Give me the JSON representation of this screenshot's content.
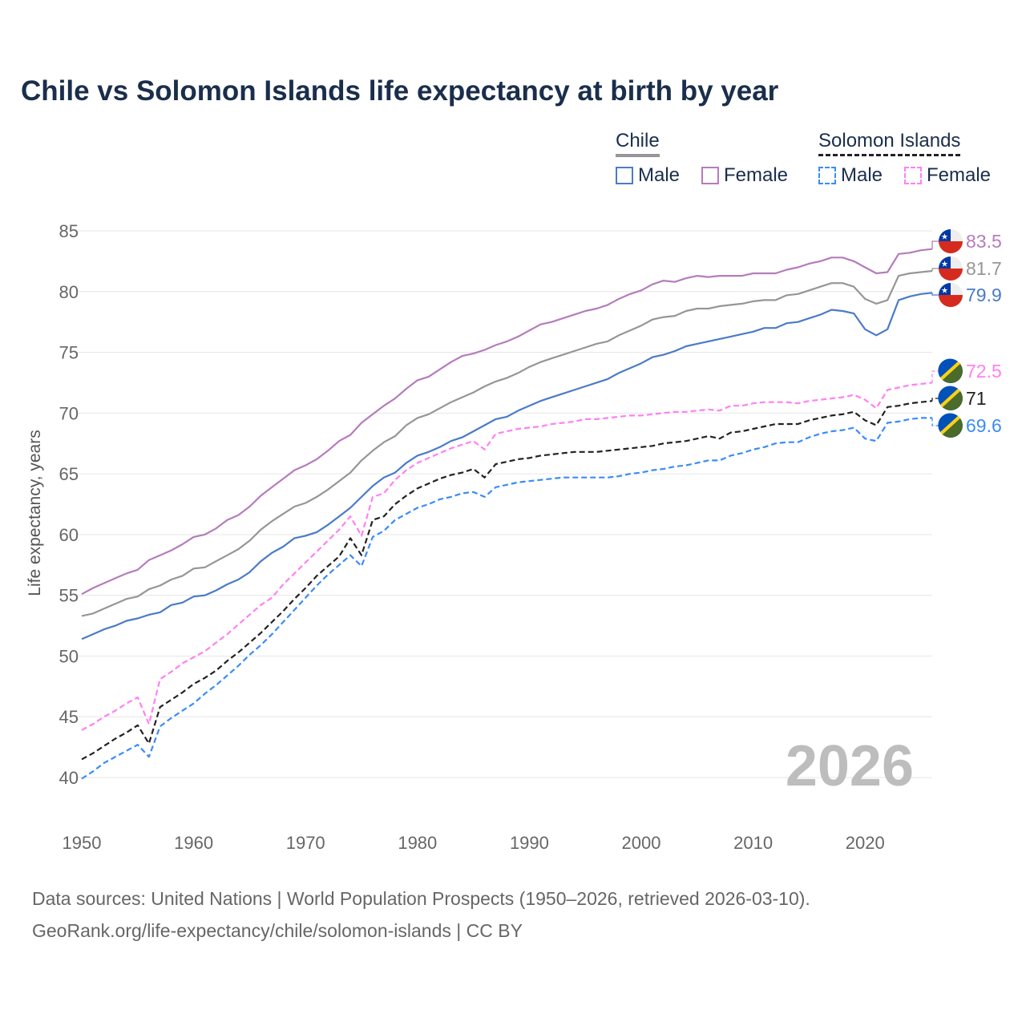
{
  "title": "Chile vs Solomon Islands life expectancy at birth by year",
  "legend": {
    "groups": [
      {
        "name": "Chile",
        "items": [
          "Male",
          "Female"
        ]
      },
      {
        "name": "Solomon Islands",
        "items": [
          "Male",
          "Female"
        ]
      }
    ]
  },
  "year_display": "2026",
  "sources": {
    "line1": "Data sources: United Nations | World Population Prospects (1950–2026, retrieved 2026-03-10).",
    "line2": "GeoRank.org/life-expectancy/chile/solomon-islands | CC BY"
  },
  "chart_data": {
    "type": "line",
    "title": "Chile vs Solomon Islands life expectancy at birth by year",
    "xlabel": "",
    "ylabel": "Life expectancy, years",
    "xlim": [
      1950,
      2026
    ],
    "ylim": [
      40,
      85
    ],
    "xticks": [
      "1950",
      "1960",
      "1970",
      "1980",
      "1990",
      "2000",
      "2010",
      "2020"
    ],
    "yticks": [
      "40",
      "45",
      "50",
      "55",
      "60",
      "65",
      "70",
      "75",
      "80",
      "85"
    ],
    "grid": true,
    "legend_position": "top-right",
    "x_start": 1950,
    "series": [
      {
        "name": "Chile Female",
        "color": "#b57cbc",
        "dash": false,
        "end_label": "83.5",
        "flag": "chile",
        "values": [
          55.1,
          55.6,
          56.0,
          56.4,
          56.8,
          57.1,
          57.9,
          58.3,
          58.7,
          59.2,
          59.8,
          60.0,
          60.5,
          61.2,
          61.6,
          62.3,
          63.2,
          63.9,
          64.6,
          65.3,
          65.7,
          66.2,
          66.9,
          67.7,
          68.2,
          69.2,
          69.9,
          70.6,
          71.2,
          72.0,
          72.7,
          73.0,
          73.6,
          74.2,
          74.7,
          74.9,
          75.2,
          75.6,
          75.9,
          76.3,
          76.8,
          77.3,
          77.5,
          77.8,
          78.1,
          78.4,
          78.6,
          78.9,
          79.4,
          79.8,
          80.1,
          80.6,
          80.9,
          80.8,
          81.1,
          81.3,
          81.2,
          81.3,
          81.3,
          81.3,
          81.5,
          81.5,
          81.5,
          81.8,
          82.0,
          82.3,
          82.5,
          82.8,
          82.8,
          82.5,
          82.0,
          81.5,
          81.6,
          83.1,
          83.2,
          83.4,
          83.5
        ]
      },
      {
        "name": "Chile",
        "color": "#969696",
        "dash": false,
        "end_label": "81.7",
        "flag": "chile",
        "values": [
          53.3,
          53.5,
          53.9,
          54.3,
          54.7,
          54.9,
          55.5,
          55.8,
          56.3,
          56.6,
          57.2,
          57.3,
          57.8,
          58.3,
          58.8,
          59.5,
          60.4,
          61.1,
          61.7,
          62.3,
          62.6,
          63.1,
          63.7,
          64.4,
          65.1,
          66.1,
          66.9,
          67.6,
          68.1,
          69.0,
          69.6,
          69.9,
          70.4,
          70.9,
          71.3,
          71.7,
          72.2,
          72.6,
          72.9,
          73.3,
          73.8,
          74.2,
          74.5,
          74.8,
          75.1,
          75.4,
          75.7,
          75.9,
          76.4,
          76.8,
          77.2,
          77.7,
          77.9,
          78.0,
          78.4,
          78.6,
          78.6,
          78.8,
          78.9,
          79.0,
          79.2,
          79.3,
          79.3,
          79.7,
          79.8,
          80.1,
          80.4,
          80.7,
          80.7,
          80.4,
          79.4,
          79.0,
          79.3,
          81.3,
          81.5,
          81.6,
          81.7
        ]
      },
      {
        "name": "Chile Male",
        "color": "#4a7bc8",
        "dash": false,
        "end_label": "79.9",
        "flag": "chile",
        "values": [
          51.4,
          51.8,
          52.2,
          52.5,
          52.9,
          53.1,
          53.4,
          53.6,
          54.2,
          54.4,
          54.9,
          55.0,
          55.4,
          55.9,
          56.3,
          56.9,
          57.8,
          58.5,
          59.0,
          59.7,
          59.9,
          60.2,
          60.8,
          61.5,
          62.2,
          63.1,
          64.0,
          64.7,
          65.1,
          65.9,
          66.5,
          66.8,
          67.2,
          67.7,
          68.0,
          68.5,
          69.0,
          69.5,
          69.7,
          70.2,
          70.6,
          71.0,
          71.3,
          71.6,
          71.9,
          72.2,
          72.5,
          72.8,
          73.3,
          73.7,
          74.1,
          74.6,
          74.8,
          75.1,
          75.5,
          75.7,
          75.9,
          76.1,
          76.3,
          76.5,
          76.7,
          77.0,
          77.0,
          77.4,
          77.5,
          77.8,
          78.1,
          78.5,
          78.4,
          78.2,
          76.9,
          76.4,
          76.9,
          79.3,
          79.6,
          79.8,
          79.9
        ]
      },
      {
        "name": "Solomon Islands Female",
        "color": "#ff80f2",
        "dash": true,
        "end_label": "72.5",
        "flag": "solomon",
        "values": [
          43.9,
          44.4,
          45.0,
          45.5,
          46.1,
          46.6,
          44.4,
          48.1,
          48.7,
          49.4,
          49.9,
          50.4,
          51.1,
          51.8,
          52.6,
          53.4,
          54.2,
          54.8,
          55.9,
          56.8,
          57.7,
          58.6,
          59.5,
          60.4,
          61.5,
          59.9,
          63.1,
          63.4,
          64.5,
          65.3,
          65.9,
          66.3,
          66.7,
          67.1,
          67.4,
          67.7,
          67.0,
          68.3,
          68.5,
          68.7,
          68.8,
          68.9,
          69.1,
          69.2,
          69.3,
          69.5,
          69.5,
          69.6,
          69.7,
          69.8,
          69.8,
          69.9,
          70.0,
          70.1,
          70.1,
          70.2,
          70.3,
          70.2,
          70.6,
          70.6,
          70.8,
          70.9,
          70.9,
          70.9,
          70.8,
          71.0,
          71.1,
          71.2,
          71.3,
          71.5,
          71.1,
          70.4,
          71.9,
          72.1,
          72.3,
          72.4,
          72.5
        ]
      },
      {
        "name": "Solomon Islands",
        "color": "#222222",
        "dash": true,
        "end_label": "71",
        "flag": "solomon",
        "values": [
          41.5,
          42.0,
          42.6,
          43.2,
          43.7,
          44.3,
          42.8,
          45.8,
          46.4,
          47.0,
          47.7,
          48.2,
          48.8,
          49.6,
          50.3,
          51.1,
          51.9,
          52.8,
          53.7,
          54.7,
          55.6,
          56.6,
          57.4,
          58.2,
          59.7,
          58.3,
          61.2,
          61.5,
          62.5,
          63.2,
          63.8,
          64.2,
          64.6,
          64.9,
          65.1,
          65.4,
          64.7,
          65.8,
          66.0,
          66.2,
          66.3,
          66.5,
          66.6,
          66.7,
          66.8,
          66.8,
          66.8,
          66.9,
          67.0,
          67.1,
          67.2,
          67.3,
          67.5,
          67.6,
          67.7,
          67.9,
          68.1,
          67.9,
          68.4,
          68.5,
          68.7,
          68.9,
          69.1,
          69.1,
          69.1,
          69.4,
          69.6,
          69.8,
          69.9,
          70.1,
          69.4,
          69.0,
          70.5,
          70.6,
          70.8,
          70.9,
          71.0
        ]
      },
      {
        "name": "Solomon Islands Male",
        "color": "#3a8cf7",
        "dash": true,
        "end_label": "69.6",
        "flag": "solomon",
        "values": [
          39.9,
          40.5,
          41.2,
          41.7,
          42.2,
          42.7,
          41.7,
          44.2,
          44.9,
          45.5,
          46.1,
          46.9,
          47.6,
          48.4,
          49.2,
          50.1,
          50.9,
          51.8,
          52.8,
          53.8,
          54.8,
          55.8,
          56.7,
          57.5,
          58.3,
          57.4,
          59.8,
          60.3,
          61.2,
          61.7,
          62.2,
          62.5,
          62.9,
          63.1,
          63.4,
          63.5,
          63.1,
          63.9,
          64.1,
          64.3,
          64.4,
          64.5,
          64.6,
          64.7,
          64.7,
          64.7,
          64.7,
          64.7,
          64.8,
          65.0,
          65.1,
          65.3,
          65.4,
          65.6,
          65.7,
          65.9,
          66.1,
          66.1,
          66.5,
          66.7,
          67.0,
          67.2,
          67.5,
          67.6,
          67.6,
          68.0,
          68.3,
          68.5,
          68.6,
          68.8,
          67.9,
          67.7,
          69.2,
          69.3,
          69.5,
          69.6,
          69.6
        ]
      }
    ]
  }
}
